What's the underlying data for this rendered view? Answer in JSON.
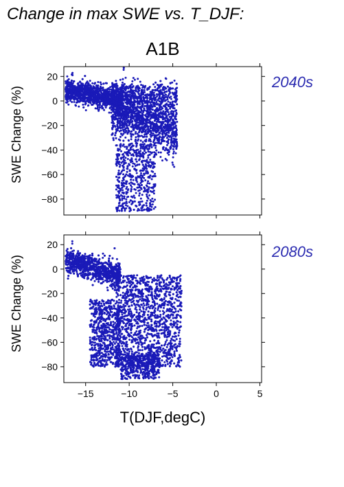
{
  "figure_title": "Change in max SWE vs. T_DJF:",
  "scenario": "A1B",
  "colors": {
    "points": "#1a1ab8",
    "era_label": "#2a2ab0"
  },
  "chart_data": [
    {
      "type": "scatter",
      "panel_label": "2040s",
      "xlabel": "",
      "ylabel": "SWE Change (%)",
      "xlim": [
        -17.5,
        5.2
      ],
      "ylim": [
        -93,
        28
      ],
      "xticks": [
        -15,
        -10,
        -5,
        0,
        5
      ],
      "yticks": [
        -80,
        -60,
        -40,
        -20,
        0,
        20
      ],
      "ytick_labels": [
        "−80",
        "−60",
        "−40",
        "−20",
        "0",
        "20"
      ],
      "point_count": 4500,
      "cloud_description": "dense blue point cloud; x spans about -17.5 to -4, y spans about -90 to 28",
      "sample_points": [
        [
          -17.2,
          5
        ],
        [
          -16.5,
          6
        ],
        [
          -15.8,
          4
        ],
        [
          -15,
          0
        ],
        [
          -14,
          2
        ],
        [
          -13,
          -2
        ],
        [
          -12,
          -8
        ],
        [
          -11,
          -15
        ],
        [
          -10,
          -20
        ],
        [
          -10,
          -45
        ],
        [
          -9.5,
          -60
        ],
        [
          -9,
          -75
        ],
        [
          -8.5,
          -85
        ],
        [
          -9.3,
          -89
        ],
        [
          -7,
          -40
        ],
        [
          -6,
          -25
        ],
        [
          -4.5,
          -10
        ],
        [
          -10.3,
          27
        ],
        [
          -4.3,
          12
        ],
        [
          -5.2,
          -60
        ]
      ]
    },
    {
      "type": "scatter",
      "panel_label": "2080s",
      "xlabel": "T(DJF,degC)",
      "ylabel": "SWE Change (%)",
      "xlim": [
        -17.5,
        5.2
      ],
      "ylim": [
        -93,
        28
      ],
      "xticks": [
        -15,
        -10,
        -5,
        0,
        5
      ],
      "xtick_labels": [
        "−15",
        "−10",
        "−5",
        "0",
        "5"
      ],
      "yticks": [
        -80,
        -60,
        -40,
        -20,
        0,
        20
      ],
      "ytick_labels": [
        "−80",
        "−60",
        "−40",
        "−20",
        "0",
        "20"
      ],
      "point_count": 5000,
      "cloud_description": "dense blue point cloud; x spans about -17.5 to -4, y spans about -90 to 18",
      "sample_points": [
        [
          -17.3,
          -8
        ],
        [
          -16.5,
          10
        ],
        [
          -15.5,
          -5
        ],
        [
          -14.5,
          -30
        ],
        [
          -13.5,
          -60
        ],
        [
          -13,
          -80
        ],
        [
          -12,
          -20
        ],
        [
          -11,
          -40
        ],
        [
          -10,
          -60
        ],
        [
          -9.5,
          -85
        ],
        [
          -9.3,
          -90
        ],
        [
          -8,
          -70
        ],
        [
          -7,
          -50
        ],
        [
          -6,
          -30
        ],
        [
          -4.5,
          -40
        ],
        [
          -4.2,
          -45
        ],
        [
          -10,
          17
        ],
        [
          -6,
          2
        ],
        [
          -5,
          -60
        ],
        [
          -8,
          -75
        ]
      ]
    }
  ]
}
